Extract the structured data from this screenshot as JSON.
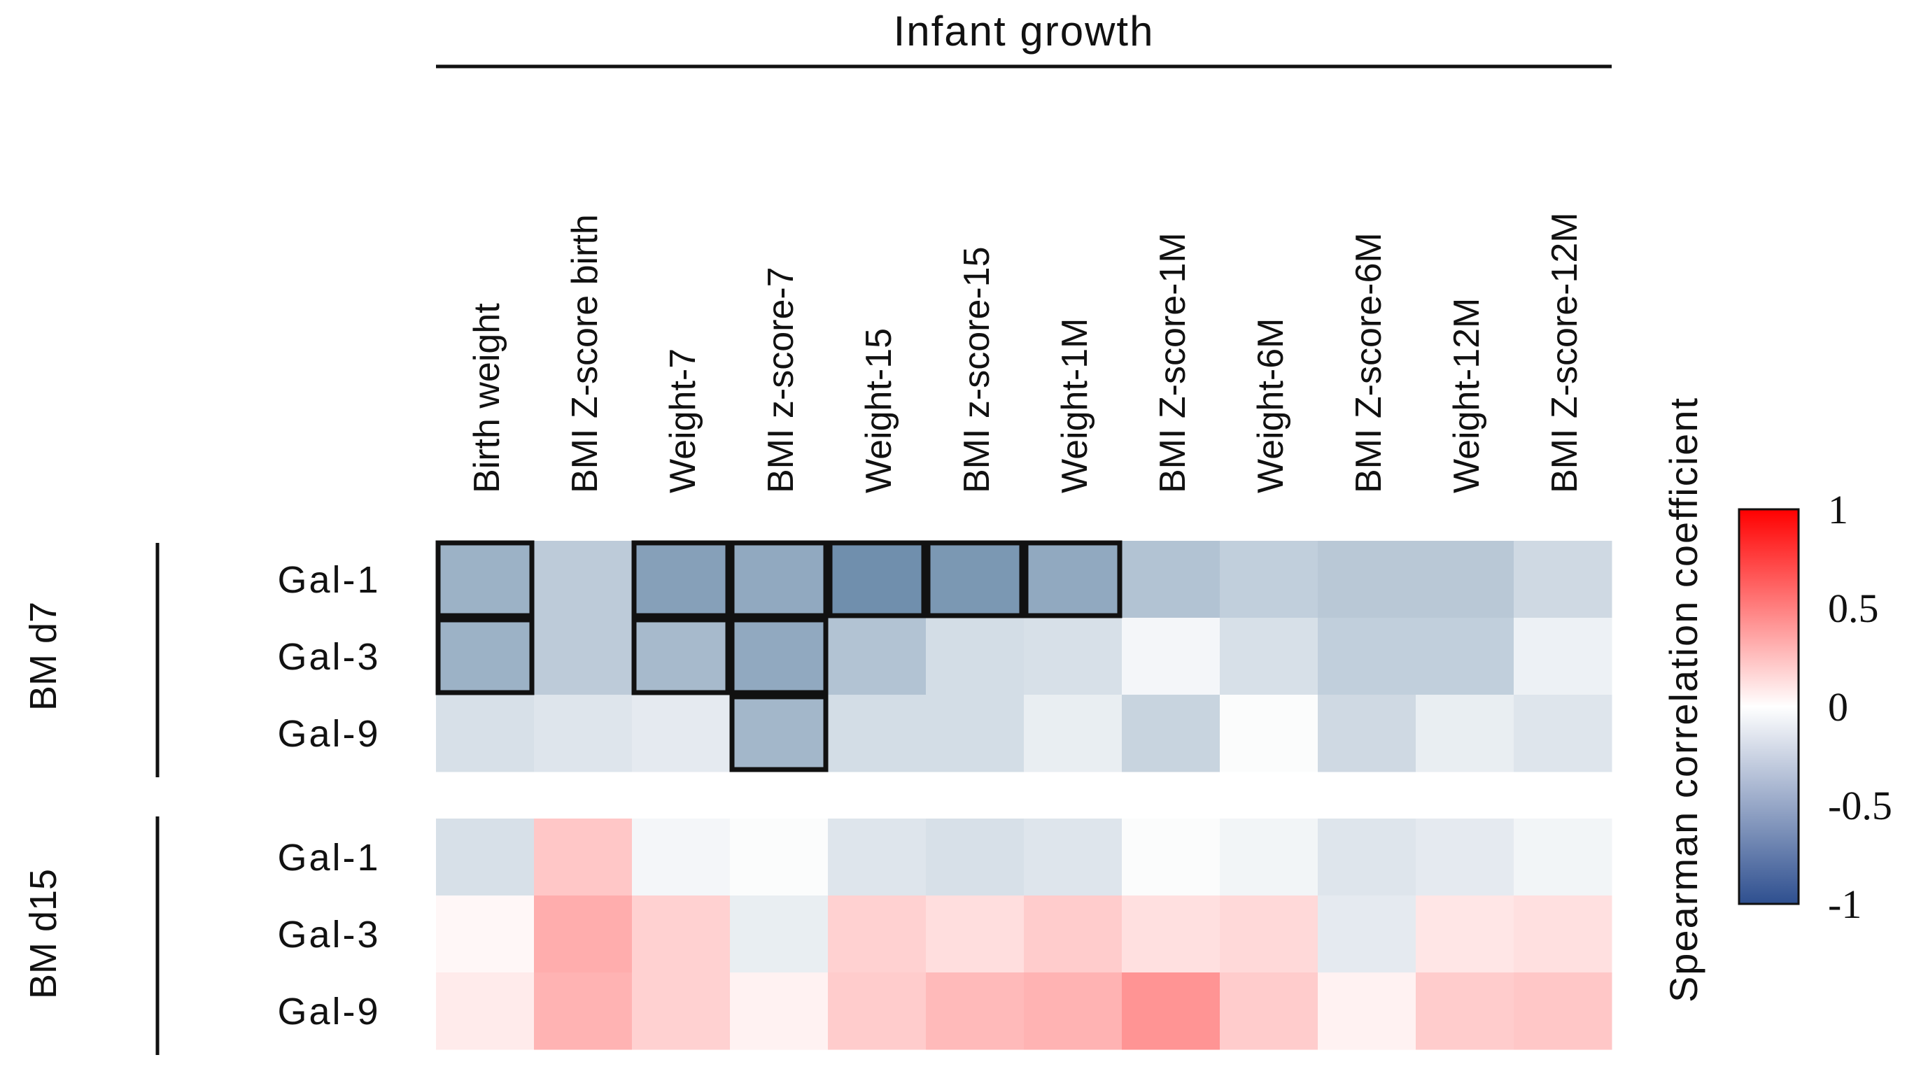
{
  "chart_data": {
    "type": "heatmap",
    "title": "Infant growth",
    "columns": [
      "Birth weight",
      "BMI Z-score birth",
      "Weight-7",
      "BMI z-score-7",
      "Weight-15",
      "BMI z-score-15",
      "Weight-1M",
      "BMI Z-score-1M",
      "Weight-6M",
      "BMI Z-score-6M",
      "Weight-12M",
      "BMI Z-score-12M"
    ],
    "groups": [
      {
        "name": "BM d7",
        "rows": [
          {
            "label": "Gal-1",
            "values": [
              -0.45,
              -0.3,
              -0.55,
              -0.5,
              -0.65,
              -0.6,
              -0.5,
              -0.35,
              -0.28,
              -0.32,
              -0.32,
              -0.22
            ]
          },
          {
            "label": "Gal-3",
            "values": [
              -0.45,
              -0.3,
              -0.4,
              -0.5,
              -0.35,
              -0.2,
              -0.18,
              -0.05,
              -0.18,
              -0.28,
              -0.28,
              -0.08
            ]
          },
          {
            "label": "Gal-9",
            "values": [
              -0.18,
              -0.15,
              -0.12,
              -0.42,
              -0.2,
              -0.2,
              -0.1,
              -0.25,
              -0.02,
              -0.22,
              -0.1,
              -0.15
            ]
          }
        ],
        "significant": [
          [
            0,
            0
          ],
          [
            0,
            2
          ],
          [
            0,
            3
          ],
          [
            0,
            4
          ],
          [
            0,
            5
          ],
          [
            0,
            6
          ],
          [
            1,
            0
          ],
          [
            1,
            2
          ],
          [
            1,
            3
          ],
          [
            2,
            3
          ]
        ]
      },
      {
        "name": "BM d15",
        "rows": [
          {
            "label": "Gal-1",
            "values": [
              -0.18,
              0.22,
              -0.05,
              -0.02,
              -0.15,
              -0.18,
              -0.15,
              -0.02,
              -0.06,
              -0.15,
              -0.12,
              -0.06
            ]
          },
          {
            "label": "Gal-3",
            "values": [
              0.03,
              0.32,
              0.18,
              -0.1,
              0.18,
              0.13,
              0.2,
              0.12,
              0.15,
              -0.12,
              0.1,
              0.12
            ]
          },
          {
            "label": "Gal-9",
            "values": [
              0.08,
              0.3,
              0.18,
              0.05,
              0.2,
              0.27,
              0.3,
              0.42,
              0.2,
              0.05,
              0.2,
              0.22
            ]
          }
        ],
        "significant": []
      }
    ],
    "colorbar": {
      "label": "Spearman correlation coefficient",
      "range": [
        -1,
        1
      ],
      "ticks": [
        "1",
        "0.5",
        "0",
        "-0.5",
        "-1"
      ],
      "colors": {
        "max": "#ff0000",
        "mid": "#ffffff",
        "min": "#2e4f8f"
      }
    },
    "colors": {
      "muted_negative": "#5a7ea0",
      "text": "#111111",
      "outline": "#111111"
    }
  }
}
